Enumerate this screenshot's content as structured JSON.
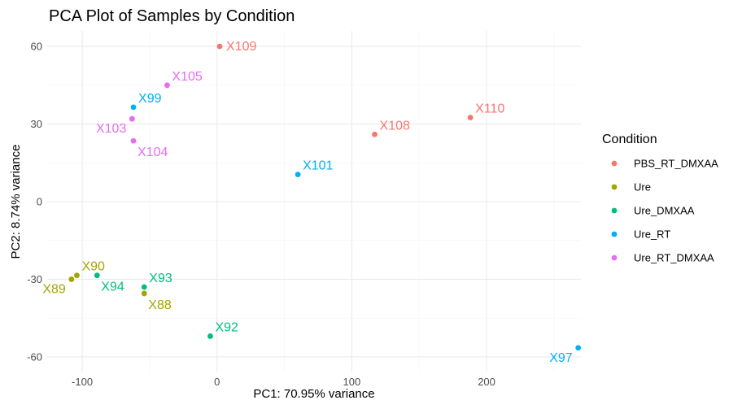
{
  "chart_data": {
    "type": "scatter",
    "title": "PCA Plot of Samples by Condition",
    "xlabel": "PC1: 70.95% variance",
    "ylabel": "PC2: 8.74% variance",
    "xlim": [
      -126,
      270
    ],
    "ylim": [
      -66,
      66
    ],
    "xticks": [
      -100,
      0,
      100,
      200
    ],
    "yticks": [
      -60,
      -30,
      0,
      30,
      60
    ],
    "xtick_labels": [
      "-100",
      "0",
      "100",
      "200"
    ],
    "ytick_labels": [
      "-60",
      "-30",
      "0",
      "30",
      "60"
    ],
    "grid": true,
    "legend": {
      "title": "Condition",
      "position": "right",
      "entries": [
        {
          "name": "PBS_RT_DMXAA",
          "color": "#F8766D"
        },
        {
          "name": "Ure",
          "color": "#A3A500"
        },
        {
          "name": "Ure_DMXAA",
          "color": "#00BF7D"
        },
        {
          "name": "Ure_RT",
          "color": "#00B0F6"
        },
        {
          "name": "Ure_RT_DMXAA",
          "color": "#E76BF3"
        }
      ]
    },
    "points": [
      {
        "label": "X109",
        "x": 2,
        "y": 60,
        "group": "PBS_RT_DMXAA",
        "label_pos": "right"
      },
      {
        "label": "X108",
        "x": 117,
        "y": 26,
        "group": "PBS_RT_DMXAA",
        "label_pos": "upper-right"
      },
      {
        "label": "X110",
        "x": 188,
        "y": 32.5,
        "group": "PBS_RT_DMXAA",
        "label_pos": "upper-right"
      },
      {
        "label": "X89",
        "x": -108,
        "y": -30,
        "group": "Ure",
        "label_pos": "lower-left"
      },
      {
        "label": "X90",
        "x": -104,
        "y": -28.5,
        "group": "Ure",
        "label_pos": "upper-right"
      },
      {
        "label": "X88",
        "x": -54,
        "y": -35.5,
        "group": "Ure",
        "label_pos": "lower-right"
      },
      {
        "label": "X94",
        "x": -89,
        "y": -28.5,
        "group": "Ure_DMXAA",
        "label_pos": "lower-right"
      },
      {
        "label": "X93",
        "x": -54,
        "y": -33,
        "group": "Ure_DMXAA",
        "label_pos": "upper-right"
      },
      {
        "label": "X92",
        "x": -5,
        "y": -52,
        "group": "Ure_DMXAA",
        "label_pos": "upper-right"
      },
      {
        "label": "X99",
        "x": -62,
        "y": 36.5,
        "group": "Ure_RT",
        "label_pos": "upper-right"
      },
      {
        "label": "X101",
        "x": 60,
        "y": 10.5,
        "group": "Ure_RT",
        "label_pos": "upper-right"
      },
      {
        "label": "X97",
        "x": 268,
        "y": -56.5,
        "group": "Ure_RT",
        "label_pos": "lower-left"
      },
      {
        "label": "X105",
        "x": -37,
        "y": 45,
        "group": "Ure_RT_DMXAA",
        "label_pos": "upper-right"
      },
      {
        "label": "X103",
        "x": -63,
        "y": 32,
        "group": "Ure_RT_DMXAA",
        "label_pos": "lower-left"
      },
      {
        "label": "X104",
        "x": -62,
        "y": 23.5,
        "group": "Ure_RT_DMXAA",
        "label_pos": "lower-right"
      }
    ]
  }
}
